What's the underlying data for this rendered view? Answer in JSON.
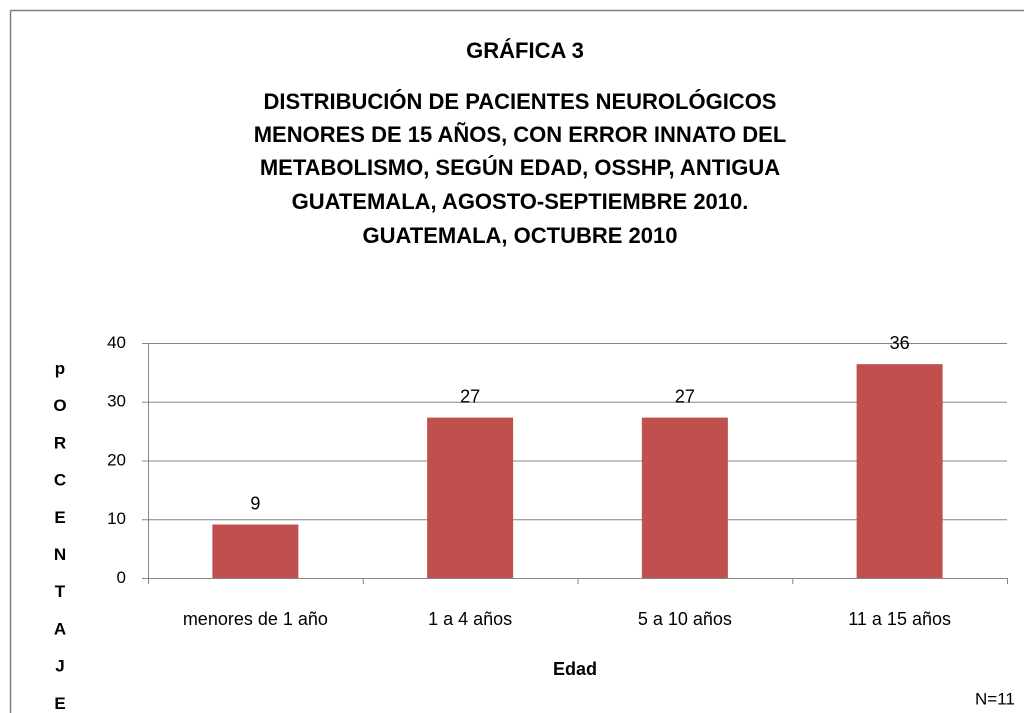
{
  "chart_data": {
    "type": "bar",
    "title": "GRÁFICA 3",
    "subtitle": [
      "DISTRIBUCIÓN DE PACIENTES NEUROLÓGICOS",
      "MENORES DE 15 AÑOS, CON ERROR INNATO DEL",
      "METABOLISMO, SEGÚN EDAD, OSSHP, ANTIGUA",
      "GUATEMALA, AGOSTO-SEPTIEMBRE 2010.",
      "GUATEMALA, OCTUBRE 2010"
    ],
    "categories": [
      "menores de 1 año",
      "1 a 4 años",
      "5 a 10 años",
      "11 a 15 años"
    ],
    "values": [
      9.1,
      27.3,
      27.3,
      36.4
    ],
    "value_labels": [
      "9",
      "27",
      "27",
      "36"
    ],
    "color": "#c0504d",
    "ylim": [
      0,
      40
    ],
    "yticks": [
      0,
      10,
      20,
      30,
      40
    ],
    "grid": true,
    "y_label": "pORCENTAJE",
    "x_label": "Edad",
    "annotation": "N=11"
  }
}
